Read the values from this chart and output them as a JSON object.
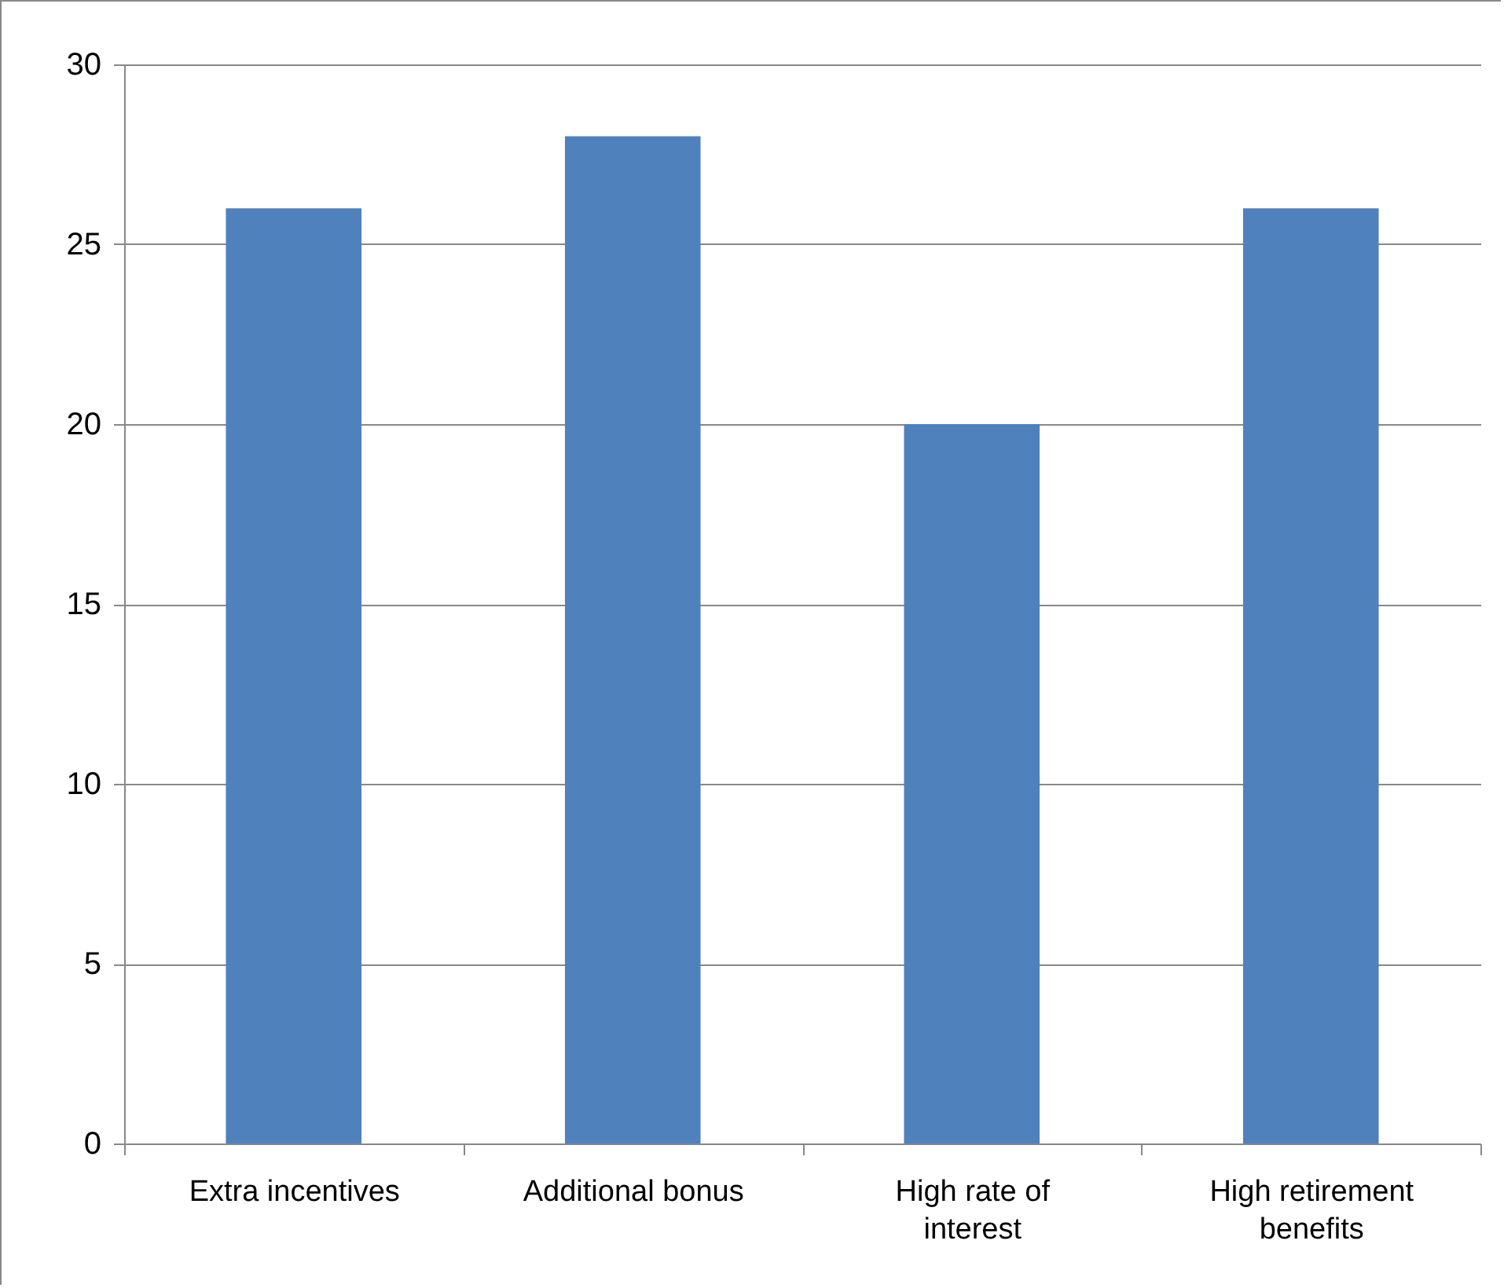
{
  "chart_data": {
    "type": "bar",
    "categories": [
      "Extra incentives",
      "Additional bonus",
      "High rate of interest",
      "High retirement benefits"
    ],
    "values": [
      26,
      28,
      20,
      26
    ],
    "color": "#4f81bd",
    "ylim": [
      0,
      30
    ],
    "yticks": [
      0,
      5,
      10,
      15,
      20,
      25,
      30
    ],
    "grid": "y"
  }
}
